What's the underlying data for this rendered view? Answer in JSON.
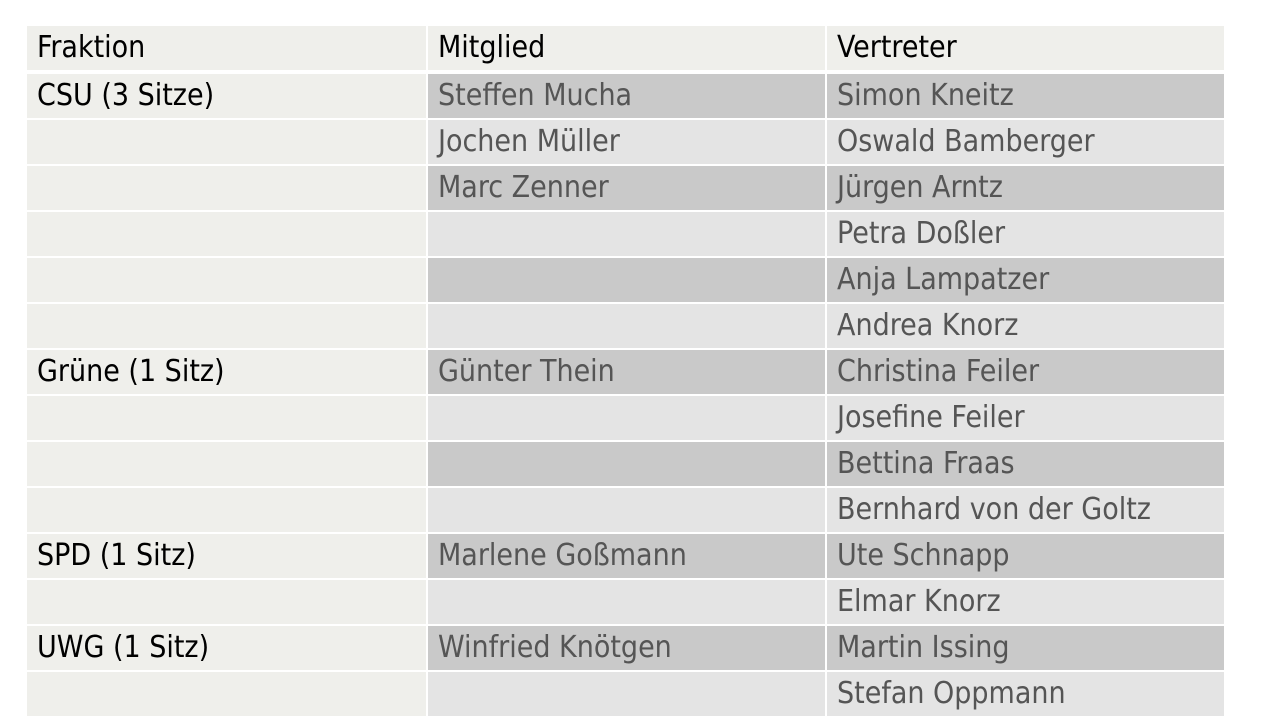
{
  "table": {
    "headers": [
      "Fraktion",
      "Mitglied",
      "Vertreter"
    ],
    "rows": [
      {
        "fraktion": "CSU (3 Sitze)",
        "mitglied": "Steffen Mucha",
        "vertreter": "Simon Kneitz"
      },
      {
        "fraktion": "",
        "mitglied": "Jochen Müller",
        "vertreter": "Oswald Bamberger"
      },
      {
        "fraktion": "",
        "mitglied": "Marc Zenner",
        "vertreter": "Jürgen Arntz"
      },
      {
        "fraktion": "",
        "mitglied": "",
        "vertreter": "Petra Doßler"
      },
      {
        "fraktion": "",
        "mitglied": "",
        "vertreter": "Anja Lampatzer"
      },
      {
        "fraktion": "",
        "mitglied": "",
        "vertreter": "Andrea Knorz"
      },
      {
        "fraktion": "Grüne (1 Sitz)",
        "mitglied": "Günter Thein",
        "vertreter": "Christina Feiler"
      },
      {
        "fraktion": "",
        "mitglied": "",
        "vertreter": "Josefine Feiler"
      },
      {
        "fraktion": "",
        "mitglied": "",
        "vertreter": "Bettina Fraas"
      },
      {
        "fraktion": "",
        "mitglied": "",
        "vertreter": "Bernhard von der Goltz"
      },
      {
        "fraktion": "SPD (1 Sitz)",
        "mitglied": "Marlene Goßmann",
        "vertreter": "Ute Schnapp"
      },
      {
        "fraktion": "",
        "mitglied": "",
        "vertreter": "Elmar Knorz"
      },
      {
        "fraktion": "UWG (1 Sitz)",
        "mitglied": "Winfried Knötgen",
        "vertreter": "Martin Issing"
      },
      {
        "fraktion": "",
        "mitglied": "",
        "vertreter": "Stefan Oppmann"
      }
    ]
  },
  "colors": {
    "header_bg": "#efefeb",
    "faction_bg": "#efefeb",
    "row_dark": "#c9c9c9",
    "row_light": "#e4e4e4",
    "name_text": "#555555"
  }
}
